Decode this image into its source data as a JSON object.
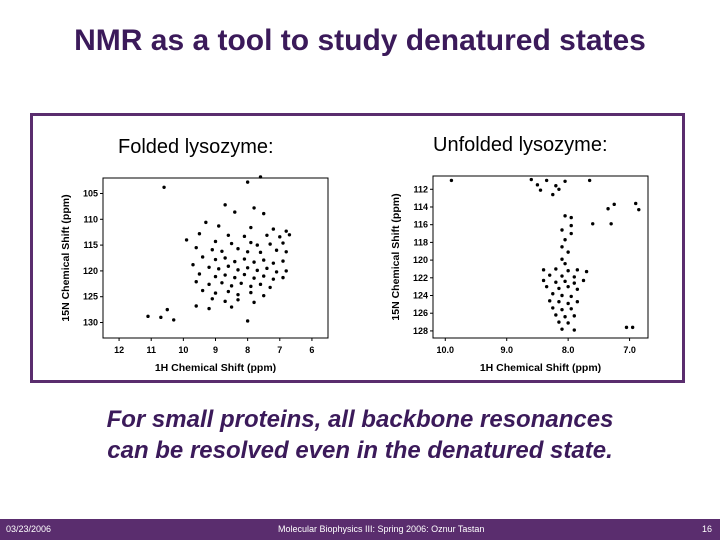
{
  "title": "NMR as a tool to study denatured states",
  "panels": {
    "folded_label": "Folded lysozyme:",
    "unfolded_label": "Unfolded lysozyme:"
  },
  "caption": {
    "line1": "For small proteins, all backbone resonances",
    "line2": "can be resolved even in the denatured state."
  },
  "footer": {
    "date": "03/23/2006",
    "course": "Molecular Biophysics III: Spring 2006: Oznur Tastan",
    "page": "16"
  },
  "colors": {
    "title": "#3b1a5a",
    "border": "#5a2d6e",
    "footer_bg": "#5a2d6e"
  },
  "chart_data": [
    {
      "type": "scatter",
      "title": "",
      "xlabel": "1H Chemical Shift (ppm)",
      "ylabel": "15N Chemical Shift (ppm)",
      "xlim": [
        12.5,
        5.5
      ],
      "ylim": [
        102,
        133
      ],
      "x_ticks": [
        "12",
        "11",
        "10",
        "9",
        "8",
        "7",
        "6"
      ],
      "y_ticks": [
        "105",
        "110",
        "115",
        "120",
        "125",
        "130"
      ],
      "points": [
        [
          10.6,
          103.8
        ],
        [
          8.0,
          102.8
        ],
        [
          7.6,
          101.8
        ],
        [
          8.7,
          107.2
        ],
        [
          7.8,
          107.8
        ],
        [
          8.4,
          108.6
        ],
        [
          7.5,
          108.9
        ],
        [
          9.3,
          110.6
        ],
        [
          8.9,
          111.3
        ],
        [
          7.9,
          111.6
        ],
        [
          7.2,
          111.9
        ],
        [
          6.8,
          112.3
        ],
        [
          9.5,
          112.8
        ],
        [
          8.6,
          113.1
        ],
        [
          8.1,
          113.3
        ],
        [
          7.4,
          113.1
        ],
        [
          7.0,
          113.4
        ],
        [
          6.7,
          113.0
        ],
        [
          9.9,
          114.0
        ],
        [
          9.0,
          114.3
        ],
        [
          8.5,
          114.7
        ],
        [
          7.9,
          114.5
        ],
        [
          7.7,
          115.0
        ],
        [
          7.3,
          114.8
        ],
        [
          6.9,
          114.6
        ],
        [
          9.6,
          115.5
        ],
        [
          9.1,
          115.9
        ],
        [
          8.8,
          116.2
        ],
        [
          8.3,
          115.7
        ],
        [
          8.0,
          116.3
        ],
        [
          7.6,
          116.4
        ],
        [
          7.1,
          116.0
        ],
        [
          6.8,
          116.3
        ],
        [
          9.4,
          117.3
        ],
        [
          9.0,
          117.8
        ],
        [
          8.7,
          117.5
        ],
        [
          8.4,
          118.2
        ],
        [
          8.1,
          117.7
        ],
        [
          7.8,
          118.3
        ],
        [
          7.5,
          117.9
        ],
        [
          7.2,
          118.5
        ],
        [
          6.9,
          118.1
        ],
        [
          9.7,
          118.8
        ],
        [
          9.2,
          119.3
        ],
        [
          8.9,
          119.6
        ],
        [
          8.6,
          119.1
        ],
        [
          8.3,
          119.8
        ],
        [
          8.0,
          119.4
        ],
        [
          7.7,
          119.9
        ],
        [
          7.4,
          119.5
        ],
        [
          7.1,
          120.2
        ],
        [
          6.8,
          120.0
        ],
        [
          9.5,
          120.6
        ],
        [
          9.0,
          121.1
        ],
        [
          8.7,
          120.8
        ],
        [
          8.4,
          121.3
        ],
        [
          8.1,
          120.7
        ],
        [
          7.8,
          121.4
        ],
        [
          7.5,
          121.0
        ],
        [
          7.2,
          121.6
        ],
        [
          6.9,
          121.3
        ],
        [
          9.6,
          122.1
        ],
        [
          9.2,
          122.6
        ],
        [
          8.8,
          122.3
        ],
        [
          8.5,
          122.9
        ],
        [
          8.2,
          122.4
        ],
        [
          7.9,
          123.0
        ],
        [
          7.6,
          122.6
        ],
        [
          7.3,
          123.2
        ],
        [
          9.4,
          123.8
        ],
        [
          9.0,
          124.3
        ],
        [
          8.6,
          124.0
        ],
        [
          8.3,
          124.6
        ],
        [
          7.9,
          124.2
        ],
        [
          7.5,
          124.8
        ],
        [
          9.1,
          125.4
        ],
        [
          8.7,
          125.9
        ],
        [
          8.3,
          125.6
        ],
        [
          7.8,
          126.1
        ],
        [
          9.6,
          126.8
        ],
        [
          9.2,
          127.3
        ],
        [
          8.5,
          127.0
        ],
        [
          10.5,
          127.5
        ],
        [
          11.1,
          128.8
        ],
        [
          10.7,
          129.0
        ],
        [
          10.3,
          129.5
        ],
        [
          8.0,
          129.7
        ]
      ]
    },
    {
      "type": "scatter",
      "title": "",
      "xlabel": "1H Chemical Shift (ppm)",
      "ylabel": "15N Chemical Shift (ppm)",
      "xlim": [
        10.2,
        6.7
      ],
      "ylim": [
        110.5,
        128.8
      ],
      "x_ticks": [
        "10.0",
        "9.0",
        "8.0",
        "7.0"
      ],
      "y_ticks": [
        "112",
        "114",
        "116",
        "118",
        "120",
        "122",
        "124",
        "126",
        "128"
      ],
      "points": [
        [
          9.9,
          111.0
        ],
        [
          8.6,
          110.9
        ],
        [
          8.35,
          111.0
        ],
        [
          8.05,
          111.1
        ],
        [
          7.65,
          111.0
        ],
        [
          8.5,
          111.5
        ],
        [
          8.2,
          111.6
        ],
        [
          8.45,
          112.1
        ],
        [
          8.15,
          112.0
        ],
        [
          8.25,
          112.6
        ],
        [
          7.25,
          113.7
        ],
        [
          6.9,
          113.6
        ],
        [
          7.35,
          114.2
        ],
        [
          6.85,
          114.3
        ],
        [
          7.95,
          115.2
        ],
        [
          7.6,
          115.9
        ],
        [
          7.3,
          115.9
        ],
        [
          8.05,
          115.0
        ],
        [
          7.95,
          116.1
        ],
        [
          8.1,
          116.6
        ],
        [
          7.95,
          117.0
        ],
        [
          8.05,
          117.7
        ],
        [
          8.1,
          118.5
        ],
        [
          8.0,
          119.1
        ],
        [
          8.1,
          119.9
        ],
        [
          8.05,
          120.4
        ],
        [
          8.4,
          121.1
        ],
        [
          8.2,
          121.0
        ],
        [
          8.0,
          121.2
        ],
        [
          7.85,
          121.1
        ],
        [
          7.7,
          121.3
        ],
        [
          8.3,
          121.7
        ],
        [
          8.1,
          121.8
        ],
        [
          7.9,
          121.9
        ],
        [
          8.4,
          122.3
        ],
        [
          8.2,
          122.5
        ],
        [
          8.05,
          122.4
        ],
        [
          7.9,
          122.6
        ],
        [
          7.75,
          122.3
        ],
        [
          8.35,
          123.0
        ],
        [
          8.15,
          123.2
        ],
        [
          8.0,
          123.0
        ],
        [
          7.85,
          123.3
        ],
        [
          8.25,
          123.8
        ],
        [
          8.1,
          124.0
        ],
        [
          7.95,
          124.1
        ],
        [
          8.3,
          124.6
        ],
        [
          8.15,
          124.7
        ],
        [
          8.0,
          124.9
        ],
        [
          7.85,
          124.7
        ],
        [
          8.25,
          125.4
        ],
        [
          8.1,
          125.6
        ],
        [
          7.95,
          125.5
        ],
        [
          8.2,
          126.2
        ],
        [
          8.05,
          126.4
        ],
        [
          7.9,
          126.3
        ],
        [
          8.15,
          127.0
        ],
        [
          8.0,
          127.1
        ],
        [
          8.1,
          127.8
        ],
        [
          7.9,
          127.9
        ],
        [
          7.05,
          127.6
        ],
        [
          6.95,
          127.6
        ]
      ]
    }
  ]
}
